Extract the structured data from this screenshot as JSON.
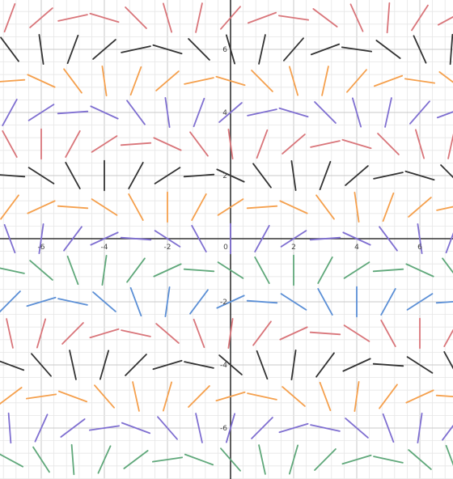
{
  "chart_data": {
    "type": "scatter",
    "subtype": "slope-field",
    "title": "",
    "xlabel": "",
    "ylabel": "",
    "xlim": [
      -7.2,
      7.1
    ],
    "ylim": [
      -7.4,
      7.6
    ],
    "grid": true,
    "minor_grid_step": 0.4,
    "major_grid_step": 2,
    "x_tick_labels": [
      {
        "value": -6,
        "label": "-6"
      },
      {
        "value": -4,
        "label": "-4"
      },
      {
        "value": -2,
        "label": "-2"
      },
      {
        "value": 0,
        "label": "0"
      },
      {
        "value": 2,
        "label": "2"
      },
      {
        "value": 4,
        "label": "4"
      },
      {
        "value": 6,
        "label": "6"
      }
    ],
    "y_tick_labels": [
      {
        "value": 6,
        "label": "6"
      },
      {
        "value": 4,
        "label": "4"
      },
      {
        "value": 2,
        "label": "2"
      },
      {
        "value": -2,
        "label": "-2"
      },
      {
        "value": -4,
        "label": "-4"
      },
      {
        "value": -6,
        "label": "-6"
      }
    ],
    "x_samples": [
      -7,
      -6,
      -5,
      -4,
      -3,
      -2,
      -1,
      0,
      1,
      2,
      3,
      4,
      5,
      6,
      7
    ],
    "y_samples": [
      7,
      6,
      5,
      4,
      3,
      2,
      1,
      0,
      -1,
      -2,
      -3,
      -4,
      -5,
      -6,
      -7
    ],
    "slope_rule": "slope = 1 / tan(y + x/2)",
    "segment_length": 1,
    "row_colors": [
      "#d9757a",
      "#333333",
      "#f5a04d",
      "#7f6fd1",
      "#d9757a",
      "#333333",
      "#f5a04d",
      "#7f6fd1",
      "#5fa87a",
      "#5b8fd6",
      "#d9757a",
      "#333333",
      "#f5a04d",
      "#7f6fd1",
      "#5fa87a"
    ],
    "colors": {
      "minor_grid": "#e6e6e6",
      "major_grid": "#c9c9c9",
      "axis": "#333333",
      "tick_label": "#444444"
    }
  }
}
